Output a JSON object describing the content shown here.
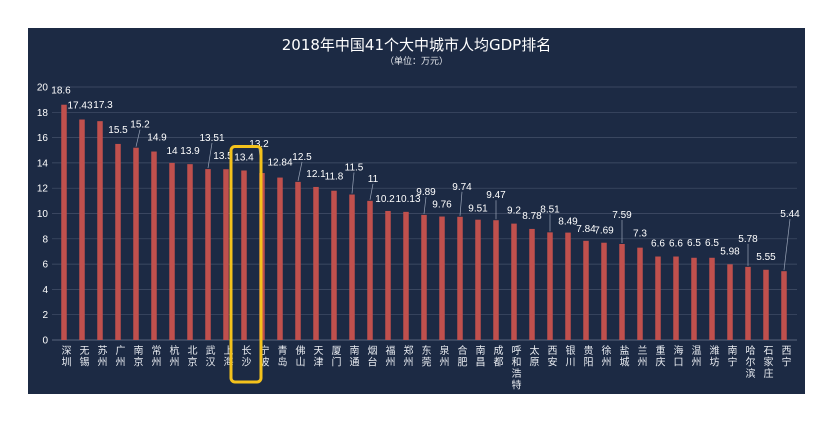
{
  "chart_data": {
    "type": "bar",
    "title": "2018年中国41个大中城市人均GDP排名",
    "subtitle": "（单位：万元）",
    "categories": [
      "深圳",
      "无锡",
      "苏州",
      "广州",
      "南京",
      "常州",
      "杭州",
      "北京",
      "武汉",
      "上海",
      "长沙",
      "宁波",
      "青岛",
      "佛山",
      "天津",
      "厦门",
      "南通",
      "烟台",
      "福州",
      "郑州",
      "东莞",
      "泉州",
      "合肥",
      "南昌",
      "成都",
      "呼和浩特",
      "太原",
      "西安",
      "银川",
      "贵阳",
      "徐州",
      "盐城",
      "兰州",
      "重庆",
      "海口",
      "温州",
      "潍坊",
      "南宁",
      "哈尔滨",
      "石家庄",
      "西宁"
    ],
    "values": [
      18.6,
      17.43,
      17.3,
      15.5,
      15.2,
      14.9,
      14,
      13.9,
      13.51,
      13.5,
      13.4,
      13.2,
      12.84,
      12.5,
      12.1,
      11.8,
      11.5,
      11,
      10.2,
      10.13,
      9.89,
      9.76,
      9.74,
      9.51,
      9.47,
      9.2,
      8.78,
      8.51,
      8.49,
      7.84,
      7.69,
      7.59,
      7.3,
      6.6,
      6.6,
      6.5,
      6.5,
      5.98,
      5.78,
      5.55,
      5.44
    ],
    "ylim": [
      0,
      20
    ],
    "yticks": [
      0,
      2,
      4,
      6,
      8,
      10,
      12,
      14,
      16,
      18,
      20
    ],
    "grid": true,
    "data_labels": true,
    "highlight": {
      "category": "长沙"
    },
    "colors": {
      "page": "#ffffff",
      "background": "#1c2a44",
      "bar": "#c0504d",
      "text": "#ffffff",
      "grid": "#44516a",
      "axis": "#6b7890",
      "leader": "#9aa5b8",
      "highlight": "#f4c21c"
    }
  }
}
